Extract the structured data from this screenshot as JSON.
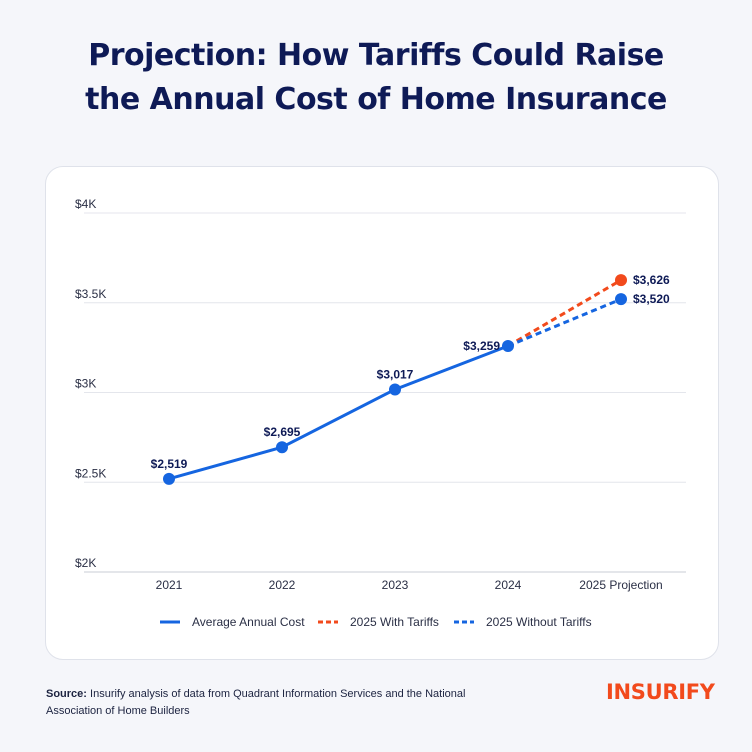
{
  "title_line1": "Projection: How Tariffs Could Raise",
  "title_line2": "the Annual Cost of Home Insurance",
  "source_label": "Source:",
  "source_text": "Insurify analysis of data from Quadrant Information Services and the National Association of Home Builders",
  "logo_text": "INSURIFY",
  "chart_data": {
    "type": "line",
    "categories": [
      "2021",
      "2022",
      "2023",
      "2024",
      "2025 Projection"
    ],
    "ylim": [
      2000,
      4000
    ],
    "yticks": [
      {
        "value": 4000,
        "label": "$4K"
      },
      {
        "value": 3500,
        "label": "$3.5K"
      },
      {
        "value": 3000,
        "label": "$3K"
      },
      {
        "value": 2500,
        "label": "$2.5K"
      },
      {
        "value": 2000,
        "label": "$2K"
      }
    ],
    "grid": true,
    "legend_position": "bottom",
    "series": [
      {
        "name": "Average Annual Cost",
        "style": "solid",
        "color": "#1565e0",
        "values": [
          2519,
          2695,
          3017,
          3259,
          null
        ],
        "labels": [
          "$2,519",
          "$2,695",
          "$3,017",
          "$3,259",
          null
        ]
      },
      {
        "name": "2025 With Tariffs",
        "style": "dashed",
        "color": "#f24a1c",
        "values": [
          null,
          null,
          null,
          3259,
          3626
        ],
        "labels": [
          null,
          null,
          null,
          null,
          "$3,626"
        ]
      },
      {
        "name": "2025 Without Tariffs",
        "style": "dashed",
        "color": "#1565e0",
        "values": [
          null,
          null,
          null,
          3259,
          3520
        ],
        "labels": [
          null,
          null,
          null,
          null,
          "$3,520"
        ]
      }
    ]
  }
}
